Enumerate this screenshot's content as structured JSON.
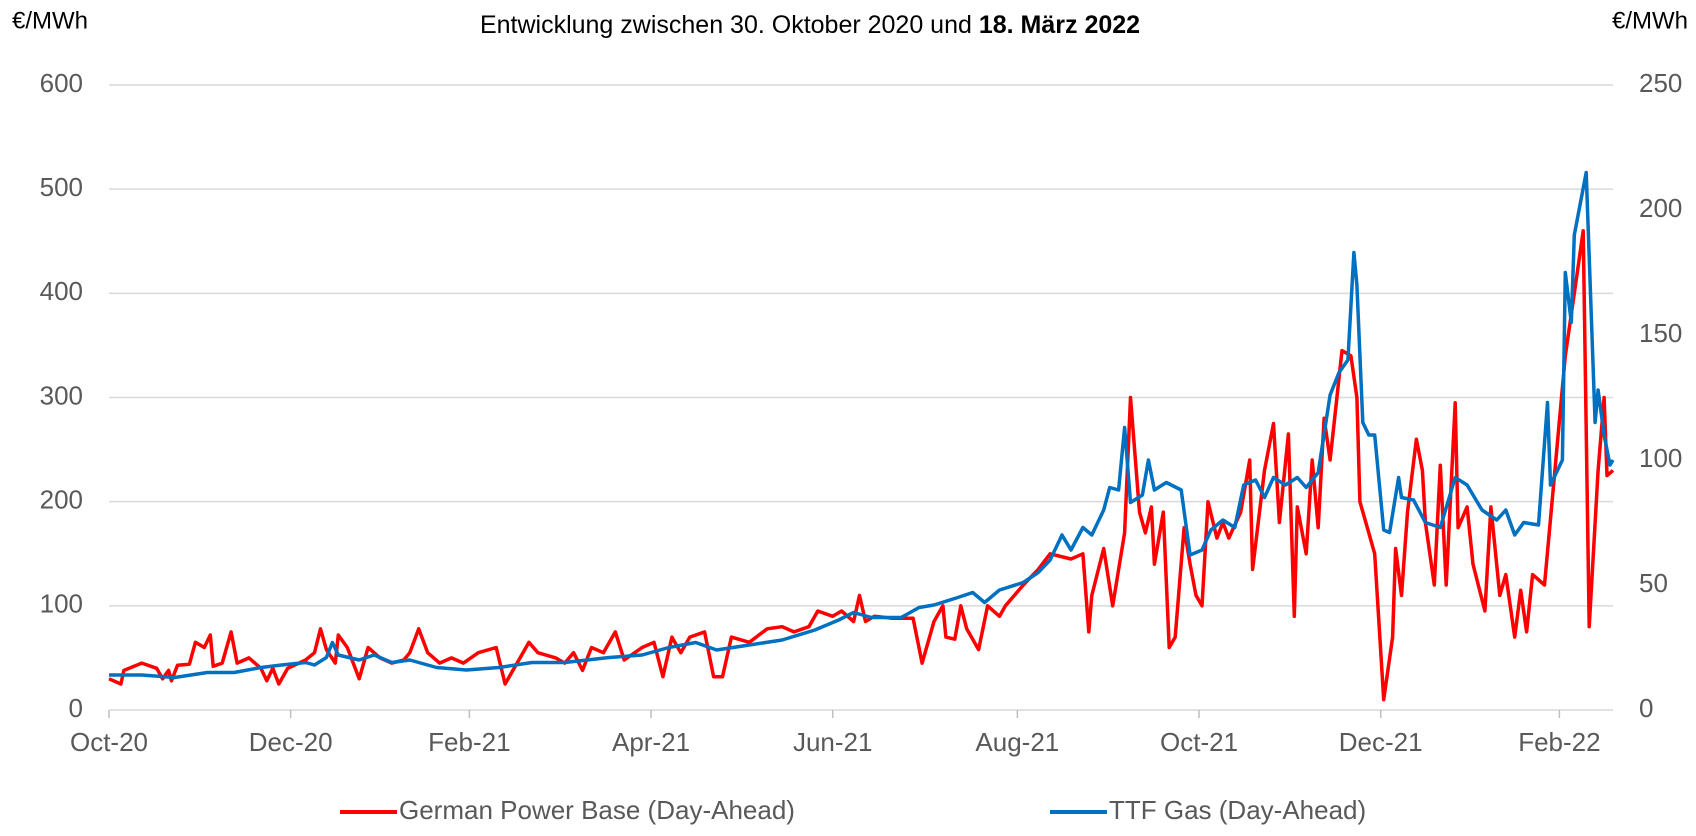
{
  "chart_data": {
    "type": "line",
    "title": "Entwicklung zwischen 30. Oktober 2020 und ",
    "title_bold": "18. März 2022",
    "ylabel": "€/MWh",
    "y2label": "€/MWh",
    "xlim": [
      0,
      505
    ],
    "xticks": [
      {
        "value": 0,
        "label": "Oct-20"
      },
      {
        "value": 61,
        "label": "Dec-20"
      },
      {
        "value": 121,
        "label": "Feb-21"
      },
      {
        "value": 182,
        "label": "Apr-21"
      },
      {
        "value": 243,
        "label": "Jun-21"
      },
      {
        "value": 305,
        "label": "Aug-21"
      },
      {
        "value": 366,
        "label": "Oct-21"
      },
      {
        "value": 427,
        "label": "Dec-21"
      },
      {
        "value": 487,
        "label": "Feb-22"
      }
    ],
    "ylim": [
      0,
      600
    ],
    "yticks": [
      0,
      100,
      200,
      300,
      400,
      500,
      600
    ],
    "y2lim": [
      0,
      250
    ],
    "y2ticks": [
      0,
      50,
      100,
      150,
      200,
      250
    ],
    "grid": true,
    "legend": "bottom",
    "series": [
      {
        "name": "German Power Base (Day-Ahead)",
        "color": "#ff0000",
        "x": [
          0,
          4,
          5,
          11,
          16,
          18,
          20,
          21,
          23,
          27,
          29,
          32,
          34,
          35,
          38,
          41,
          43,
          47,
          51,
          53,
          55,
          57,
          60,
          66,
          69,
          71,
          73,
          76,
          77,
          80,
          84,
          87,
          91,
          95,
          99,
          101,
          104,
          107,
          111,
          115,
          119,
          124,
          130,
          133,
          139,
          141,
          144,
          150,
          153,
          156,
          159,
          162,
          166,
          170,
          173,
          179,
          183,
          186,
          189,
          192,
          195,
          200,
          203,
          206,
          209,
          215,
          221,
          226,
          230,
          235,
          238,
          243,
          246,
          250,
          252,
          254,
          257,
          263,
          270,
          273,
          277,
          280,
          281,
          284,
          286,
          288,
          292,
          295,
          299,
          301,
          307,
          312,
          316,
          323,
          327,
          329,
          330,
          334,
          337,
          341,
          343,
          346,
          348,
          350,
          351,
          354,
          356,
          358,
          361,
          363,
          365,
          367,
          369,
          372,
          374,
          376,
          380,
          383,
          384,
          388,
          391,
          393,
          396,
          398,
          399,
          402,
          404,
          406,
          408,
          410,
          414,
          417,
          419,
          420,
          423,
          425,
          428,
          431,
          432,
          434,
          436,
          439,
          441,
          442,
          445,
          447,
          449,
          452,
          453,
          456,
          458,
          462,
          464,
          467,
          469,
          472,
          474,
          476,
          478,
          482,
          489,
          493,
          495,
          497,
          500,
          502,
          503,
          505
        ],
        "values": [
          30,
          25,
          38,
          45,
          40,
          30,
          38,
          28,
          43,
          44,
          65,
          60,
          72,
          42,
          45,
          75,
          45,
          50,
          40,
          28,
          40,
          25,
          40,
          48,
          55,
          78,
          58,
          45,
          72,
          60,
          30,
          60,
          50,
          45,
          48,
          55,
          78,
          55,
          45,
          50,
          45,
          55,
          60,
          25,
          55,
          65,
          55,
          50,
          45,
          55,
          38,
          60,
          55,
          75,
          48,
          60,
          65,
          32,
          70,
          55,
          70,
          75,
          32,
          32,
          70,
          65,
          78,
          80,
          75,
          80,
          95,
          90,
          95,
          85,
          110,
          85,
          90,
          88,
          88,
          45,
          85,
          100,
          70,
          68,
          100,
          78,
          58,
          100,
          90,
          100,
          120,
          135,
          150,
          145,
          150,
          75,
          110,
          155,
          100,
          170,
          300,
          190,
          170,
          195,
          140,
          190,
          60,
          70,
          175,
          140,
          110,
          100,
          200,
          165,
          180,
          165,
          190,
          240,
          135,
          230,
          275,
          180,
          265,
          90,
          195,
          150,
          240,
          175,
          280,
          240,
          345,
          340,
          300,
          200,
          170,
          150,
          10,
          70,
          155,
          110,
          190,
          260,
          230,
          180,
          120,
          235,
          120,
          295,
          175,
          195,
          140,
          95,
          195,
          110,
          130,
          70,
          115,
          75,
          130,
          120,
          340,
          420,
          460,
          80,
          230,
          300,
          225,
          230
        ]
      },
      {
        "name": "TTF Gas (Day-Ahead)",
        "color": "#0070c0",
        "axis": "y2",
        "x": [
          0,
          11,
          22,
          33,
          42,
          51,
          58,
          66,
          69,
          73,
          75,
          77,
          84,
          89,
          95,
          101,
          110,
          120,
          131,
          142,
          153,
          168,
          179,
          188,
          197,
          204,
          215,
          226,
          237,
          245,
          250,
          256,
          266,
          272,
          277,
          285,
          290,
          294,
          299,
          307,
          312,
          316,
          320,
          323,
          327,
          330,
          334,
          336,
          339,
          341,
          343,
          347,
          349,
          351,
          355,
          360,
          363,
          367,
          370,
          374,
          378,
          381,
          385,
          388,
          391,
          395,
          399,
          402,
          406,
          410,
          413,
          416,
          418,
          419,
          421,
          423,
          425,
          428,
          430,
          433,
          434,
          438,
          442,
          447,
          452,
          456,
          461,
          466,
          469,
          472,
          475,
          480,
          483,
          484,
          488,
          489,
          491,
          492,
          496,
          499,
          500,
          502,
          504,
          505
        ],
        "values": [
          14,
          14,
          13,
          15,
          15,
          17,
          18,
          19,
          18,
          21,
          27,
          22,
          20,
          22,
          19,
          20,
          17,
          16,
          17,
          19,
          19,
          21,
          22,
          25,
          27,
          24,
          26,
          28,
          32,
          36,
          39,
          37,
          37,
          41,
          42,
          45,
          47,
          43,
          48,
          51,
          55,
          60,
          70,
          64,
          73,
          70,
          80,
          89,
          88,
          113,
          83,
          86,
          100,
          88,
          91,
          88,
          62,
          64,
          72,
          76,
          73,
          90,
          92,
          85,
          93,
          90,
          93,
          89,
          95,
          126,
          135,
          140,
          183,
          170,
          115,
          110,
          110,
          72,
          71,
          93,
          85,
          84,
          75,
          73,
          93,
          90,
          80,
          76,
          80,
          70,
          75,
          74,
          123,
          90,
          100,
          175,
          155,
          190,
          215,
          115,
          128,
          110,
          98,
          100
        ]
      }
    ]
  }
}
